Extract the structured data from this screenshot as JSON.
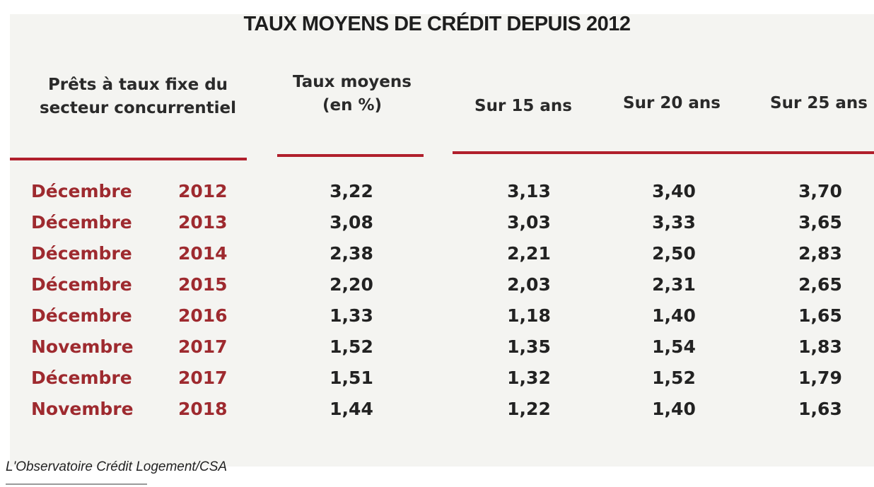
{
  "title": "TAUX MOYENS DE CRÉDIT DEPUIS 2012",
  "headers": {
    "col0": "Prêts à taux fixe du secteur concurrentiel",
    "col1": "Taux moyens (en %)",
    "col2": "Sur 15 ans",
    "col3": "Sur 20 ans",
    "col4": "Sur 25 ans"
  },
  "accent_color": "#9e2a2f",
  "rows": [
    {
      "month": "Décembre",
      "year": "2012",
      "avg": "3,22",
      "y15": "3,13",
      "y20": "3,40",
      "y25": "3,70"
    },
    {
      "month": "Décembre",
      "year": "2013",
      "avg": "3,08",
      "y15": "3,03",
      "y20": "3,33",
      "y25": "3,65"
    },
    {
      "month": "Décembre",
      "year": "2014",
      "avg": "2,38",
      "y15": "2,21",
      "y20": "2,50",
      "y25": "2,83"
    },
    {
      "month": "Décembre",
      "year": "2015",
      "avg": "2,20",
      "y15": "2,03",
      "y20": "2,31",
      "y25": "2,65"
    },
    {
      "month": "Décembre",
      "year": "2016",
      "avg": "1,33",
      "y15": "1,18",
      "y20": "1,40",
      "y25": "1,65"
    },
    {
      "month": "Novembre",
      "year": "2017",
      "avg": "1,52",
      "y15": "1,35",
      "y20": "1,54",
      "y25": "1,83"
    },
    {
      "month": "Décembre",
      "year": "2017",
      "avg": "1,51",
      "y15": "1,32",
      "y20": "1,52",
      "y25": "1,79"
    },
    {
      "month": "Novembre",
      "year": "2018",
      "avg": "1,44",
      "y15": "1,22",
      "y20": "1,40",
      "y25": "1,63"
    }
  ],
  "source": "L'Observatoire Crédit Logement/CSA"
}
